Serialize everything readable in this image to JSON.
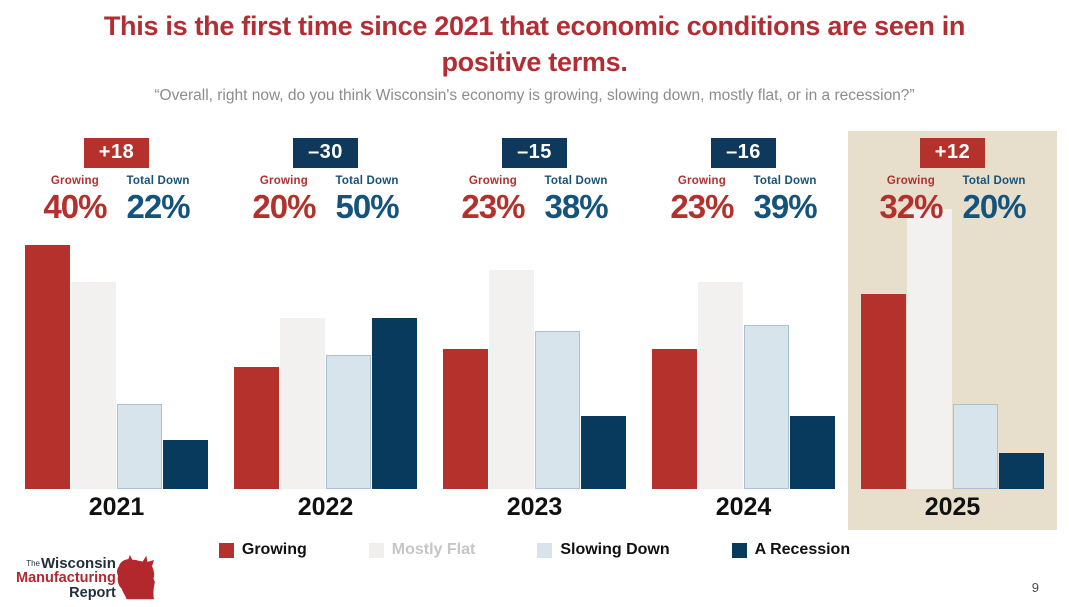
{
  "header": {
    "title_line1": "This is the first time since 2021 that economic conditions are seen in",
    "title_line2": "positive terms.",
    "subtitle": "“Overall, right now, do you think Wisconsin's economy is growing, slowing down, mostly flat, or in a recession?”"
  },
  "colors": {
    "title_red": "#B22E34",
    "bar_red": "#B4322B",
    "bar_gray": "#F2F1F0",
    "bar_lightblue": "#D7E4EC",
    "bar_lightblue_border": "#A9C2D0",
    "bar_navy": "#073A5D",
    "stat_navy_text": "#14537C",
    "highlight_beige": "#E7DFCB",
    "subtitle_gray": "#8C8C8C"
  },
  "chart_data": {
    "type": "bar",
    "categories": [
      "2021",
      "2022",
      "2023",
      "2024",
      "2025"
    ],
    "series": [
      {
        "name": "Growing",
        "color": "#B4322B",
        "values": [
          40,
          20,
          23,
          23,
          32
        ]
      },
      {
        "name": "Mostly Flat",
        "color": "#F2F1F0",
        "values": [
          34,
          28,
          36,
          34,
          46
        ]
      },
      {
        "name": "Slowing Down",
        "color": "#D7E4EC",
        "border": "#A9C2D0",
        "values": [
          14,
          22,
          26,
          27,
          14
        ]
      },
      {
        "name": "A Recession",
        "color": "#073A5D",
        "values": [
          8,
          28,
          12,
          12,
          6
        ]
      }
    ],
    "annotations": {
      "growing_label": "Growing",
      "total_down_label": "Total Down",
      "net_badges": [
        "+18",
        "–30",
        "–15",
        "–16",
        "+12"
      ],
      "badge_colors": [
        "#B4322B",
        "#0E395C",
        "#0E395C",
        "#0E395C",
        "#B4322B"
      ],
      "growing_pct": [
        "40%",
        "20%",
        "23%",
        "23%",
        "32%"
      ],
      "total_down_pct": [
        "22%",
        "50%",
        "38%",
        "39%",
        "20%"
      ]
    },
    "highlighted_category": "2025",
    "highlight_color": "#E7DFCB",
    "legend": [
      {
        "label": "Growing",
        "swatch": "#B4322B",
        "text_color": "#111111"
      },
      {
        "label": "Mostly Flat",
        "swatch": "#F0EFEE",
        "text_color": "#C6C6C6"
      },
      {
        "label": "Slowing Down",
        "swatch": "#D7E4EC",
        "text_color": "#111111"
      },
      {
        "label": "A Recession",
        "swatch": "#073A5D",
        "text_color": "#111111"
      }
    ],
    "ylim": [
      0,
      50
    ],
    "grid": false,
    "legend_position": "bottom"
  },
  "logo": {
    "the": "The",
    "line1": "Wisconsin",
    "line2": "Manufacturing",
    "line3": "Report"
  },
  "page": {
    "number": "9"
  }
}
